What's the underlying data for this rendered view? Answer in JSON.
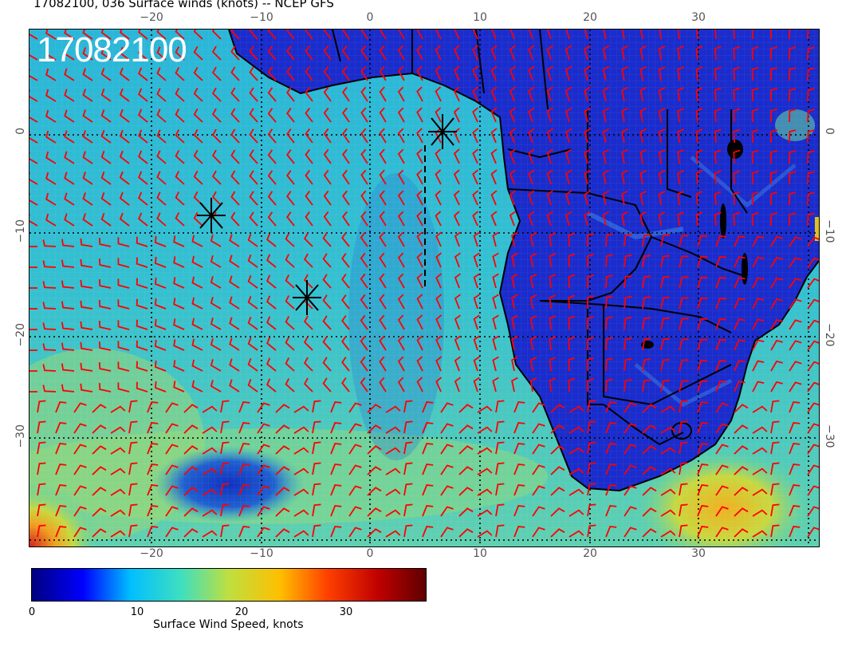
{
  "header": {
    "title": "17082100, 036 Surface winds (knots) -- NCEP GFS"
  },
  "map": {
    "datestamp": "17082100",
    "top_lon_ticks": [
      "−20",
      "−10",
      "0",
      "10",
      "20",
      "30"
    ],
    "bottom_lon_ticks": [
      "−20",
      "−10",
      "0",
      "10",
      "20",
      "30"
    ],
    "left_lat_ticks": [
      "0",
      "−10",
      "−20",
      "−30"
    ],
    "right_lat_ticks": [
      "0",
      "−10",
      "−20",
      "−30"
    ],
    "markers": [
      "storm-marker-1",
      "storm-marker-2",
      "storm-marker-3"
    ],
    "barb_color": "#ff0000",
    "land_color": "#1a2fd0",
    "ocean_color": "#27b8d6"
  },
  "colorbar": {
    "ticks": [
      "0",
      "10",
      "20",
      "30"
    ],
    "label": "Surface Wind Speed, knots",
    "colors": [
      "#00007f",
      "#0000ff",
      "#00bfff",
      "#3fdfbf",
      "#bfdf3f",
      "#ffbf00",
      "#ff4000",
      "#bf0000",
      "#5f0000"
    ]
  }
}
